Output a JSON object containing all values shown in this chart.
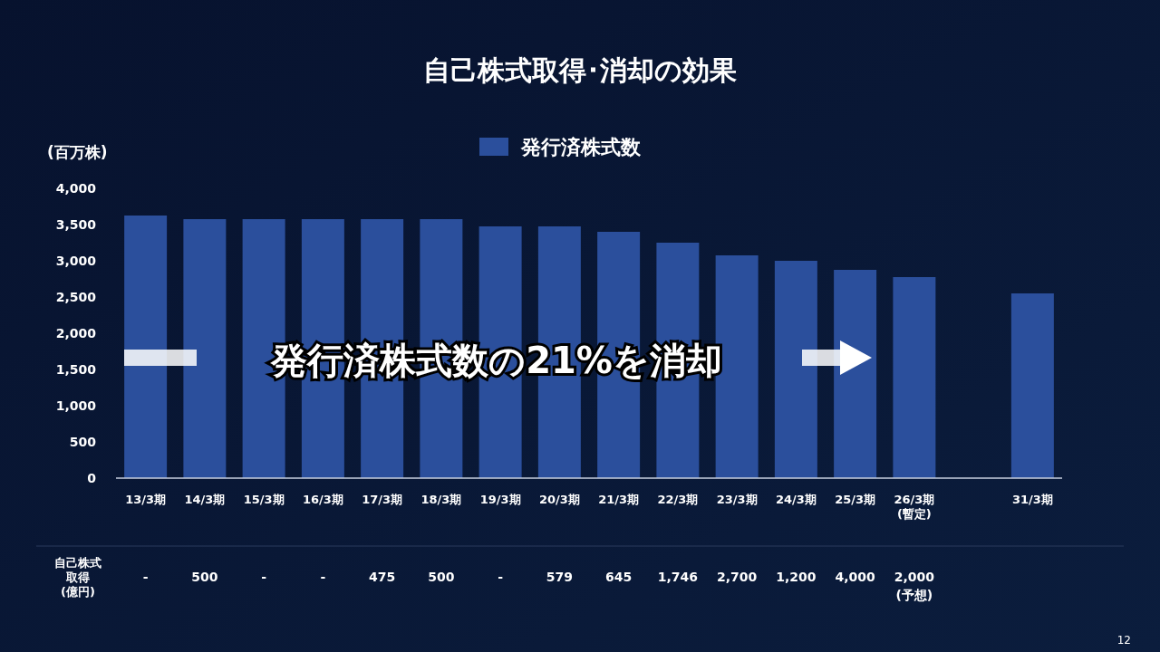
{
  "chart_data": {
    "type": "bar",
    "title": "自己株式取得･消却の効果",
    "ylabel": "(百万株)",
    "categories": [
      "13/3期",
      "14/3期",
      "15/3期",
      "16/3期",
      "17/3期",
      "18/3期",
      "19/3期",
      "20/3期",
      "21/3期",
      "22/3期",
      "23/3期",
      "24/3期",
      "25/3期",
      "26/3期\n(暫定)",
      null,
      "31/3期"
    ],
    "series": [
      {
        "name": "発行済株式数",
        "color": "#2b4f9c",
        "values": [
          3625,
          3575,
          3575,
          3575,
          3575,
          3575,
          3475,
          3475,
          3400,
          3250,
          3075,
          3000,
          2875,
          2775,
          null,
          2550
        ]
      }
    ],
    "ylim": [
      0,
      4000
    ],
    "yticks": [
      {
        "value": 0,
        "label": "0"
      },
      {
        "value": 500,
        "label": "500"
      },
      {
        "value": 1000,
        "label": "1,000"
      },
      {
        "value": 1500,
        "label": "1,500"
      },
      {
        "value": 2000,
        "label": "2,000"
      },
      {
        "value": 2500,
        "label": "2,500"
      },
      {
        "value": 3000,
        "label": "3,000"
      },
      {
        "value": 3500,
        "label": "3,500"
      },
      {
        "value": 4000,
        "label": "4,000"
      }
    ],
    "legend": "top",
    "grid": false,
    "annotations": [
      "発行済株式数の21%を消却",
      "自己株式",
      "取得",
      "(億円)",
      "-",
      "500",
      "-",
      "-",
      "475",
      "500",
      "-",
      "579",
      "645",
      "1,746",
      "2,700",
      "1,200",
      "4,000",
      "2,000\n(予想)",
      "12"
    ]
  }
}
